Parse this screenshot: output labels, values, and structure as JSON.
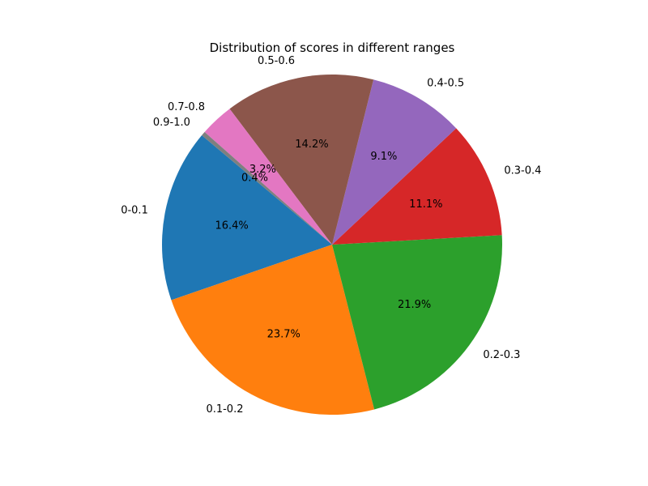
{
  "chart_data": {
    "type": "pie",
    "title": "Distribution of scores in different ranges",
    "start_angle_deg": 140,
    "direction": "counterclockwise",
    "slices": [
      {
        "label": "0-0.1",
        "percent": 16.4,
        "pct_label": "16.4%",
        "color": "#1f77b4"
      },
      {
        "label": "0.1-0.2",
        "percent": 23.7,
        "pct_label": "23.7%",
        "color": "#ff7f0e"
      },
      {
        "label": "0.2-0.3",
        "percent": 21.9,
        "pct_label": "21.9%",
        "color": "#2ca02c"
      },
      {
        "label": "0.3-0.4",
        "percent": 11.1,
        "pct_label": "11.1%",
        "color": "#d62728"
      },
      {
        "label": "0.4-0.5",
        "percent": 9.1,
        "pct_label": "9.1%",
        "color": "#9467bd"
      },
      {
        "label": "0.5-0.6",
        "percent": 14.2,
        "pct_label": "14.2%",
        "color": "#8c564b"
      },
      {
        "label": "0.7-0.8",
        "percent": 3.2,
        "pct_label": "3.2%",
        "color": "#e377c2"
      },
      {
        "label": "0.9-1.0",
        "percent": 0.4,
        "pct_label": "0.4%",
        "color": "#7f7f7f"
      }
    ]
  }
}
